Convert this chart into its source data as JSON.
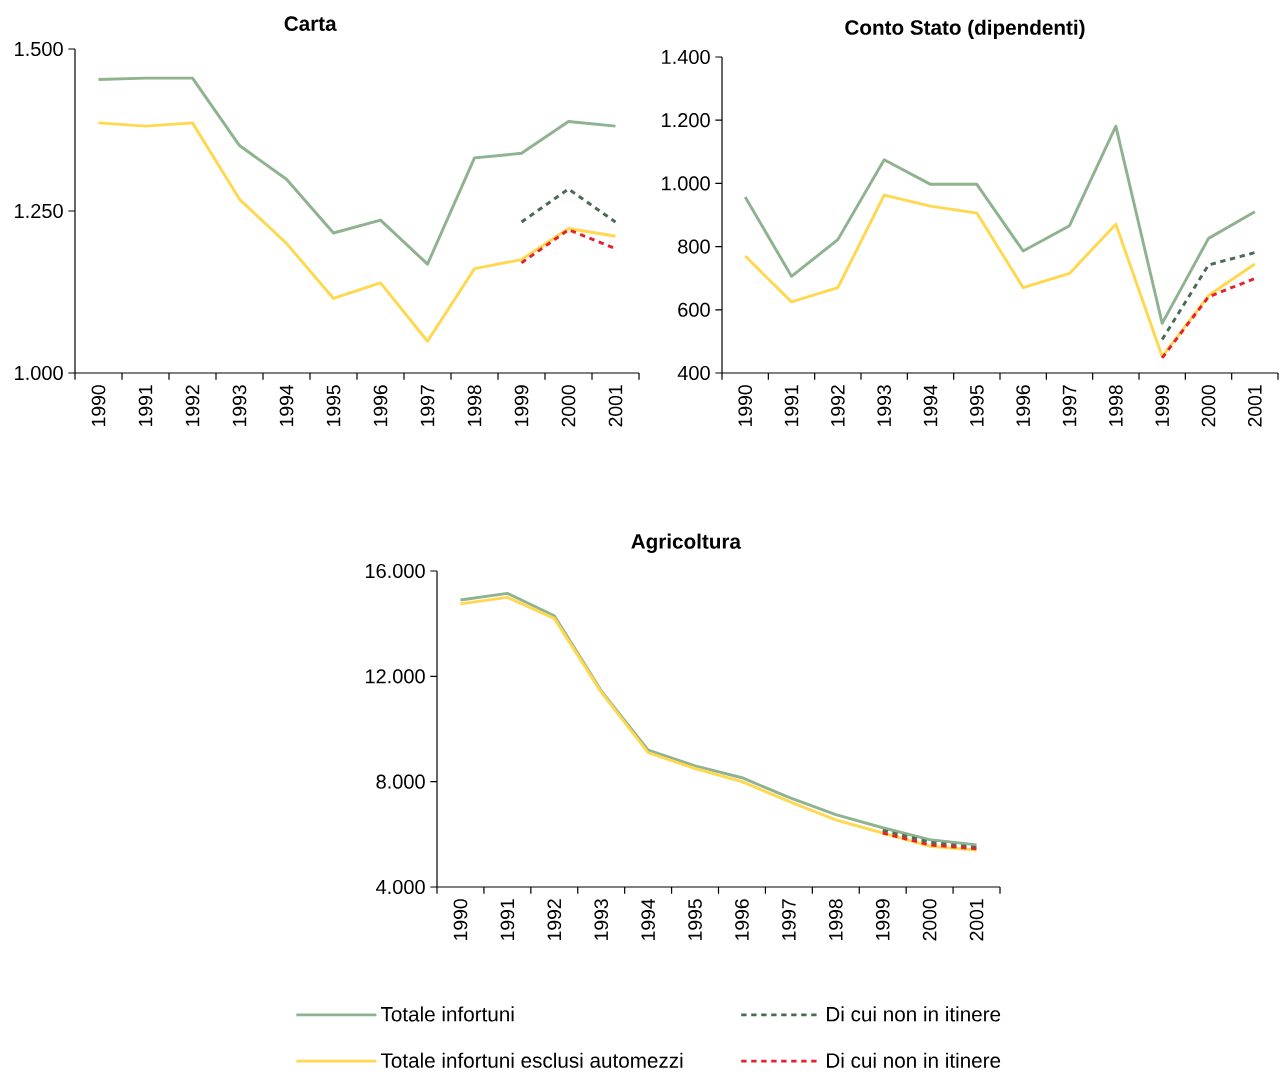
{
  "chart_data": [
    {
      "type": "line",
      "title": "Carta",
      "categories": [
        "1990",
        "1991",
        "1992",
        "1993",
        "1994",
        "1995",
        "1996",
        "1997",
        "1998",
        "1999",
        "2000",
        "2001"
      ],
      "ylim": [
        1000,
        1500
      ],
      "yticks": [
        {
          "value": 1000,
          "label": "1.000"
        },
        {
          "value": 1250,
          "label": "1.250"
        },
        {
          "value": 1500,
          "label": "1.500"
        }
      ],
      "series": [
        {
          "color": "#8fb28f",
          "line_style": "solid",
          "values": [
            1453,
            1455,
            1455,
            1351,
            1299,
            1216,
            1236,
            1168,
            1332,
            1339,
            1388,
            1381
          ]
        },
        {
          "color": "#ffd84f",
          "line_style": "solid",
          "values": [
            1386,
            1381,
            1386,
            1268,
            1200,
            1115,
            1139,
            1049,
            1161,
            1175,
            1223,
            1211
          ]
        },
        {
          "color": "#4a6b56",
          "line_style": "dashed",
          "values": [
            null,
            null,
            null,
            null,
            null,
            null,
            null,
            null,
            null,
            1233,
            1284,
            1233
          ]
        },
        {
          "color": "#e8202a",
          "line_style": "dashed",
          "values": [
            null,
            null,
            null,
            null,
            null,
            null,
            null,
            null,
            null,
            1170,
            1221,
            1192
          ]
        }
      ]
    },
    {
      "type": "line",
      "title": "Conto Stato (dipendenti)",
      "categories": [
        "1990",
        "1991",
        "1992",
        "1993",
        "1994",
        "1995",
        "1996",
        "1997",
        "1998",
        "1999",
        "2000",
        "2001"
      ],
      "ylim": [
        400,
        1400
      ],
      "yticks": [
        400,
        600,
        800,
        {
          "value": 1000,
          "label": "1.000"
        },
        {
          "value": 1200,
          "label": "1.200"
        },
        {
          "value": 1400,
          "label": "1.400"
        }
      ],
      "series": [
        {
          "color": "#8fb28f",
          "line_style": "solid",
          "values": [
            957,
            706,
            822,
            1075,
            997,
            997,
            786,
            866,
            1181,
            557,
            826,
            910
          ]
        },
        {
          "color": "#ffd84f",
          "line_style": "solid",
          "values": [
            770,
            625,
            670,
            963,
            928,
            906,
            670,
            715,
            871,
            452,
            645,
            745
          ]
        },
        {
          "color": "#4a6b56",
          "line_style": "dashed",
          "values": [
            null,
            null,
            null,
            null,
            null,
            null,
            null,
            null,
            null,
            506,
            742,
            781
          ]
        },
        {
          "color": "#e8202a",
          "line_style": "dashed",
          "values": [
            null,
            null,
            null,
            null,
            null,
            null,
            null,
            null,
            null,
            448,
            641,
            699
          ]
        }
      ]
    },
    {
      "type": "line",
      "title": "Agricoltura",
      "categories": [
        "1990",
        "1991",
        "1992",
        "1993",
        "1994",
        "1995",
        "1996",
        "1997",
        "1998",
        "1999",
        "2000",
        "2001"
      ],
      "ylim": [
        4000,
        16000
      ],
      "yticks": [
        {
          "value": 4000,
          "label": "4.000"
        },
        {
          "value": 8000,
          "label": "8.000"
        },
        {
          "value": 12000,
          "label": "12.000"
        },
        {
          "value": 16000,
          "label": "16.000"
        }
      ],
      "legend": "bottom",
      "series": [
        {
          "name": "Totale infortuni",
          "color": "#8fb28f",
          "line_style": "solid",
          "values": [
            14900,
            15150,
            14300,
            11450,
            9200,
            8600,
            8150,
            7400,
            6750,
            6250,
            5800,
            5600
          ]
        },
        {
          "name": "Totale infortuni esclusi automezzi",
          "color": "#ffd84f",
          "line_style": "solid",
          "values": [
            14750,
            15000,
            14200,
            11400,
            9100,
            8500,
            8000,
            7250,
            6550,
            6050,
            5550,
            5400
          ]
        },
        {
          "name": "Di cui non in itinere",
          "color": "#4a6b56",
          "line_style": "dashed",
          "values": [
            null,
            null,
            null,
            null,
            null,
            null,
            null,
            null,
            null,
            6150,
            5700,
            5500
          ]
        },
        {
          "name": "Di cui non in itinere",
          "color": "#e8202a",
          "line_style": "dashed",
          "values": [
            null,
            null,
            null,
            null,
            null,
            null,
            null,
            null,
            null,
            6050,
            5600,
            5450
          ]
        }
      ]
    }
  ]
}
